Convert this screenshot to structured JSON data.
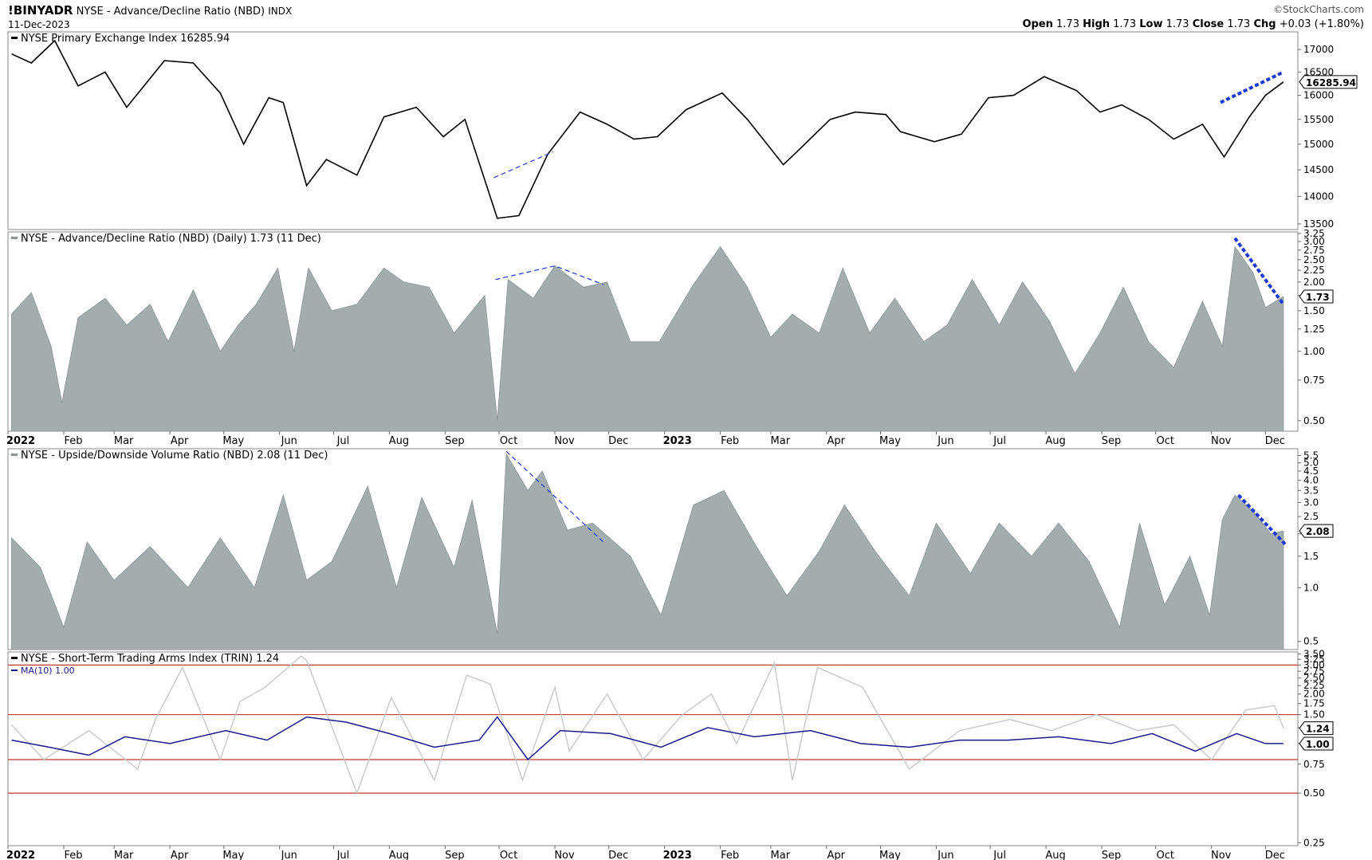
{
  "header": {
    "symbol": "!BINYADR",
    "description": "NYSE - Advance/Decline Ratio (NBD)",
    "index_tag": "INDX",
    "date": "11-Dec-2023",
    "brand": "©StockCharts.com",
    "ohlc": {
      "open_label": "Open",
      "open": "1.73",
      "high_label": "High",
      "high": "1.73",
      "low_label": "Low",
      "low": "1.73",
      "close_label": "Close",
      "close": "1.73",
      "chg_label": "Chg",
      "chg": "+0.03 (+1.80%)"
    }
  },
  "time_axis": {
    "labels": [
      "2022",
      "Feb",
      "Mar",
      "Apr",
      "May",
      "Jun",
      "Jul",
      "Aug",
      "Sep",
      "Oct",
      "Nov",
      "Dec",
      "2023",
      "Feb",
      "Mar",
      "Apr",
      "May",
      "Jun",
      "Jul",
      "Aug",
      "Sep",
      "Oct",
      "Nov",
      "Dec"
    ],
    "bold": [
      "2022",
      "2023"
    ]
  },
  "colors": {
    "price_line": "#000000",
    "area_fill": "#a4adad",
    "area_stroke": "#8a9494",
    "trin_line": "#c8c8c8",
    "ma_line": "#1a1a8c",
    "ref_lines": "#c0392b",
    "annotation_blue": "#1c39d6",
    "grid": "#d0d0d0"
  },
  "chart_data": [
    {
      "type": "line",
      "title": "NYSE Primary Exchange Index 16285.94",
      "last_value_tag": "16285.94",
      "scale": "log",
      "ylim": [
        13400,
        17400
      ],
      "y_ticks": [
        "17000",
        "16500",
        "16000",
        "15500",
        "15000",
        "14500",
        "14000",
        "13500"
      ],
      "x": [
        "2022-01-03",
        "2022-01-14",
        "2022-01-27",
        "2022-02-09",
        "2022-02-24",
        "2022-03-08",
        "2022-03-29",
        "2022-04-14",
        "2022-04-29",
        "2022-05-12",
        "2022-05-26",
        "2022-06-03",
        "2022-06-16",
        "2022-06-27",
        "2022-07-14",
        "2022-07-29",
        "2022-08-16",
        "2022-08-31",
        "2022-09-12",
        "2022-09-30",
        "2022-10-12",
        "2022-10-28",
        "2022-11-15",
        "2022-11-30",
        "2022-12-15",
        "2022-12-28",
        "2023-01-13",
        "2023-02-02",
        "2023-02-16",
        "2023-03-08",
        "2023-03-17",
        "2023-04-03",
        "2023-04-17",
        "2023-05-04",
        "2023-05-12",
        "2023-05-31",
        "2023-06-15",
        "2023-06-30",
        "2023-07-14",
        "2023-07-31",
        "2023-08-18",
        "2023-08-31",
        "2023-09-12",
        "2023-09-27",
        "2023-10-11",
        "2023-10-27",
        "2023-11-08",
        "2023-11-22",
        "2023-12-01",
        "2023-12-11"
      ],
      "values": [
        16900,
        16700,
        17200,
        16200,
        16500,
        15750,
        16750,
        16700,
        16050,
        15000,
        15950,
        15850,
        14200,
        14700,
        14400,
        15550,
        15750,
        15150,
        15500,
        13600,
        13650,
        14800,
        15650,
        15400,
        15100,
        15150,
        15700,
        16050,
        15500,
        14600,
        14900,
        15500,
        15650,
        15600,
        15250,
        15050,
        15200,
        15950,
        16000,
        16400,
        16100,
        15650,
        15800,
        15500,
        15100,
        15400,
        14750,
        15550,
        16000,
        16285.94
      ]
    },
    {
      "type": "area",
      "title": "NYSE - Advance/Decline Ratio (NBD) (Daily) 1.73 (11 Dec)",
      "last_value_tag": "1.73",
      "scale": "log",
      "ylim": [
        0.45,
        3.3
      ],
      "y_ticks": [
        "3.25",
        "3.00",
        "2.75",
        "2.50",
        "2.25",
        "2.00",
        "1.75",
        "1.50",
        "1.25",
        "1.00",
        "0.75",
        "0.50"
      ],
      "x": [
        "2022-01-03",
        "2022-01-14",
        "2022-01-25",
        "2022-01-31",
        "2022-02-09",
        "2022-02-24",
        "2022-03-08",
        "2022-03-21",
        "2022-03-31",
        "2022-04-14",
        "2022-04-29",
        "2022-05-09",
        "2022-05-19",
        "2022-05-31",
        "2022-06-09",
        "2022-06-17",
        "2022-06-30",
        "2022-07-14",
        "2022-07-29",
        "2022-08-09",
        "2022-08-23",
        "2022-09-06",
        "2022-09-23",
        "2022-09-30",
        "2022-10-06",
        "2022-10-20",
        "2022-11-01",
        "2022-11-17",
        "2022-11-30",
        "2022-12-13",
        "2022-12-29",
        "2023-01-17",
        "2023-02-01",
        "2023-02-16",
        "2023-03-01",
        "2023-03-13",
        "2023-03-28",
        "2023-04-10",
        "2023-04-25",
        "2023-05-09",
        "2023-05-25",
        "2023-06-07",
        "2023-06-21",
        "2023-07-06",
        "2023-07-19",
        "2023-08-03",
        "2023-08-17",
        "2023-08-31",
        "2023-09-13",
        "2023-09-27",
        "2023-10-11",
        "2023-10-27",
        "2023-11-07",
        "2023-11-14",
        "2023-11-24",
        "2023-12-01",
        "2023-12-11"
      ],
      "values": [
        1.45,
        1.8,
        1.05,
        0.6,
        1.4,
        1.7,
        1.3,
        1.6,
        1.1,
        1.85,
        1.0,
        1.3,
        1.6,
        2.3,
        1.0,
        2.3,
        1.5,
        1.6,
        2.3,
        2.0,
        1.9,
        1.2,
        1.75,
        0.5,
        2.05,
        1.7,
        2.35,
        1.9,
        2.0,
        1.1,
        1.1,
        1.95,
        2.85,
        1.9,
        1.15,
        1.45,
        1.2,
        2.3,
        1.2,
        1.7,
        1.1,
        1.3,
        2.05,
        1.3,
        2.0,
        1.35,
        0.8,
        1.2,
        1.9,
        1.1,
        0.85,
        1.65,
        1.05,
        2.85,
        2.2,
        1.55,
        1.73
      ]
    },
    {
      "type": "area",
      "title": "NYSE - Upside/Downside Volume Ratio (NBD) 2.08 (11 Dec)",
      "last_value_tag": "2.08",
      "scale": "log",
      "ylim": [
        0.45,
        6.0
      ],
      "y_ticks": [
        "5.5",
        "5.0",
        "4.5",
        "4.0",
        "3.5",
        "3.0",
        "2.5",
        "2.0",
        "1.5",
        "1.0",
        "0.5"
      ],
      "x": [
        "2022-01-03",
        "2022-01-19",
        "2022-02-01",
        "2022-02-14",
        "2022-03-01",
        "2022-03-21",
        "2022-04-11",
        "2022-04-29",
        "2022-05-18",
        "2022-06-03",
        "2022-06-16",
        "2022-06-30",
        "2022-07-20",
        "2022-08-05",
        "2022-08-19",
        "2022-09-06",
        "2022-09-16",
        "2022-09-30",
        "2022-10-05",
        "2022-10-17",
        "2022-10-25",
        "2022-11-08",
        "2022-11-22",
        "2022-12-13",
        "2022-12-30",
        "2023-01-17",
        "2023-02-03",
        "2023-02-21",
        "2023-03-10",
        "2023-03-28",
        "2023-04-11",
        "2023-04-28",
        "2023-05-17",
        "2023-06-01",
        "2023-06-20",
        "2023-07-06",
        "2023-07-24",
        "2023-08-08",
        "2023-08-25",
        "2023-09-11",
        "2023-09-22",
        "2023-10-06",
        "2023-10-20",
        "2023-10-31",
        "2023-11-07",
        "2023-11-14",
        "2023-11-24",
        "2023-12-04",
        "2023-12-11"
      ],
      "values": [
        1.9,
        1.3,
        0.6,
        1.8,
        1.1,
        1.7,
        1.0,
        1.9,
        1.0,
        3.3,
        1.1,
        1.4,
        3.7,
        1.0,
        3.2,
        1.3,
        3.1,
        0.55,
        5.6,
        3.5,
        4.5,
        2.1,
        2.3,
        1.5,
        0.7,
        2.9,
        3.5,
        1.7,
        0.9,
        1.6,
        2.9,
        1.6,
        0.9,
        2.3,
        1.2,
        2.3,
        1.5,
        2.3,
        1.4,
        0.6,
        2.3,
        0.8,
        1.5,
        0.7,
        2.4,
        3.3,
        2.7,
        2.0,
        2.08
      ]
    },
    {
      "type": "line",
      "title": "NYSE - Short-Term Trading Arms Index (TRIN) 1.24",
      "series": [
        {
          "name": "NYSE - Short-Term Trading Arms Index (TRIN) 1.24",
          "last_value_tag": "1.24",
          "x": [
            "2022-01-03",
            "2022-01-21",
            "2022-02-15",
            "2022-03-14",
            "2022-03-24",
            "2022-04-08",
            "2022-04-29",
            "2022-05-10",
            "2022-05-24",
            "2022-06-13",
            "2022-06-16",
            "2022-07-14",
            "2022-08-02",
            "2022-08-26",
            "2022-09-13",
            "2022-09-26",
            "2022-10-14",
            "2022-11-01",
            "2022-11-09",
            "2022-11-30",
            "2022-12-20",
            "2023-01-11",
            "2023-01-27",
            "2023-02-10",
            "2023-03-03",
            "2023-03-13",
            "2023-03-27",
            "2023-04-21",
            "2023-05-17",
            "2023-06-14",
            "2023-07-12",
            "2023-08-04",
            "2023-08-29",
            "2023-09-21",
            "2023-10-11",
            "2023-11-01",
            "2023-11-20",
            "2023-12-06",
            "2023-12-11"
          ],
          "values": [
            1.3,
            0.8,
            1.2,
            0.7,
            1.4,
            2.9,
            0.8,
            1.8,
            2.2,
            3.4,
            3.2,
            0.5,
            1.9,
            0.6,
            2.6,
            2.3,
            0.6,
            2.2,
            0.9,
            2.0,
            0.8,
            1.5,
            2.0,
            1.0,
            3.1,
            0.6,
            2.9,
            2.2,
            0.7,
            1.2,
            1.4,
            1.2,
            1.5,
            1.2,
            1.3,
            0.8,
            1.6,
            1.7,
            1.24
          ]
        },
        {
          "name": "MA(10) 1.00",
          "last_value_tag": "1.00",
          "x": [
            "2022-01-03",
            "2022-01-24",
            "2022-02-15",
            "2022-03-07",
            "2022-04-01",
            "2022-05-02",
            "2022-05-25",
            "2022-06-16",
            "2022-07-08",
            "2022-08-01",
            "2022-08-26",
            "2022-09-20",
            "2022-09-30",
            "2022-10-17",
            "2022-11-04",
            "2022-12-02",
            "2022-12-30",
            "2023-01-25",
            "2023-02-20",
            "2023-03-23",
            "2023-04-20",
            "2023-05-17",
            "2023-06-14",
            "2023-07-11",
            "2023-08-08",
            "2023-09-06",
            "2023-09-29",
            "2023-10-23",
            "2023-11-15",
            "2023-12-01",
            "2023-12-11"
          ],
          "values": [
            1.05,
            0.95,
            0.85,
            1.1,
            1.0,
            1.2,
            1.05,
            1.45,
            1.35,
            1.15,
            0.95,
            1.05,
            1.45,
            0.8,
            1.2,
            1.15,
            0.95,
            1.25,
            1.1,
            1.2,
            1.0,
            0.95,
            1.05,
            1.05,
            1.1,
            1.0,
            1.15,
            0.9,
            1.15,
            1.0,
            1.0
          ]
        }
      ],
      "scale": "log",
      "ylim": [
        0.24,
        3.6
      ],
      "y_ticks": [
        "3.50",
        "3.25",
        "3.00",
        "2.75",
        "2.50",
        "2.25",
        "2.00",
        "1.75",
        "1.50",
        "1.25",
        "1.00",
        "0.75",
        "0.50",
        "0.25"
      ],
      "reference_lines": [
        3.0,
        1.5,
        0.8,
        0.5
      ]
    }
  ],
  "annotations": [
    {
      "panel": 0,
      "style": "dashed-thin",
      "from": [
        "2022-09-28",
        14350
      ],
      "to": [
        "2022-10-31",
        14850
      ]
    },
    {
      "panel": 0,
      "style": "dotted-thick",
      "from": [
        "2023-11-06",
        15850
      ],
      "to": [
        "2023-12-11",
        16500
      ]
    },
    {
      "panel": 1,
      "style": "dashed-thin",
      "points": [
        [
          "2022-09-29",
          2.05
        ],
        [
          "2022-11-01",
          2.35
        ],
        [
          "2022-11-28",
          1.95
        ]
      ]
    },
    {
      "panel": 1,
      "style": "dotted-thick",
      "from": [
        "2023-11-14",
        3.1
      ],
      "to": [
        "2023-12-11",
        1.6
      ]
    },
    {
      "panel": 2,
      "style": "dashed-thin",
      "from": [
        "2022-10-05",
        5.8
      ],
      "to": [
        "2022-11-28",
        1.8
      ]
    },
    {
      "panel": 2,
      "style": "dotted-thick",
      "from": [
        "2023-11-16",
        3.3
      ],
      "to": [
        "2023-12-12",
        1.75
      ]
    }
  ]
}
